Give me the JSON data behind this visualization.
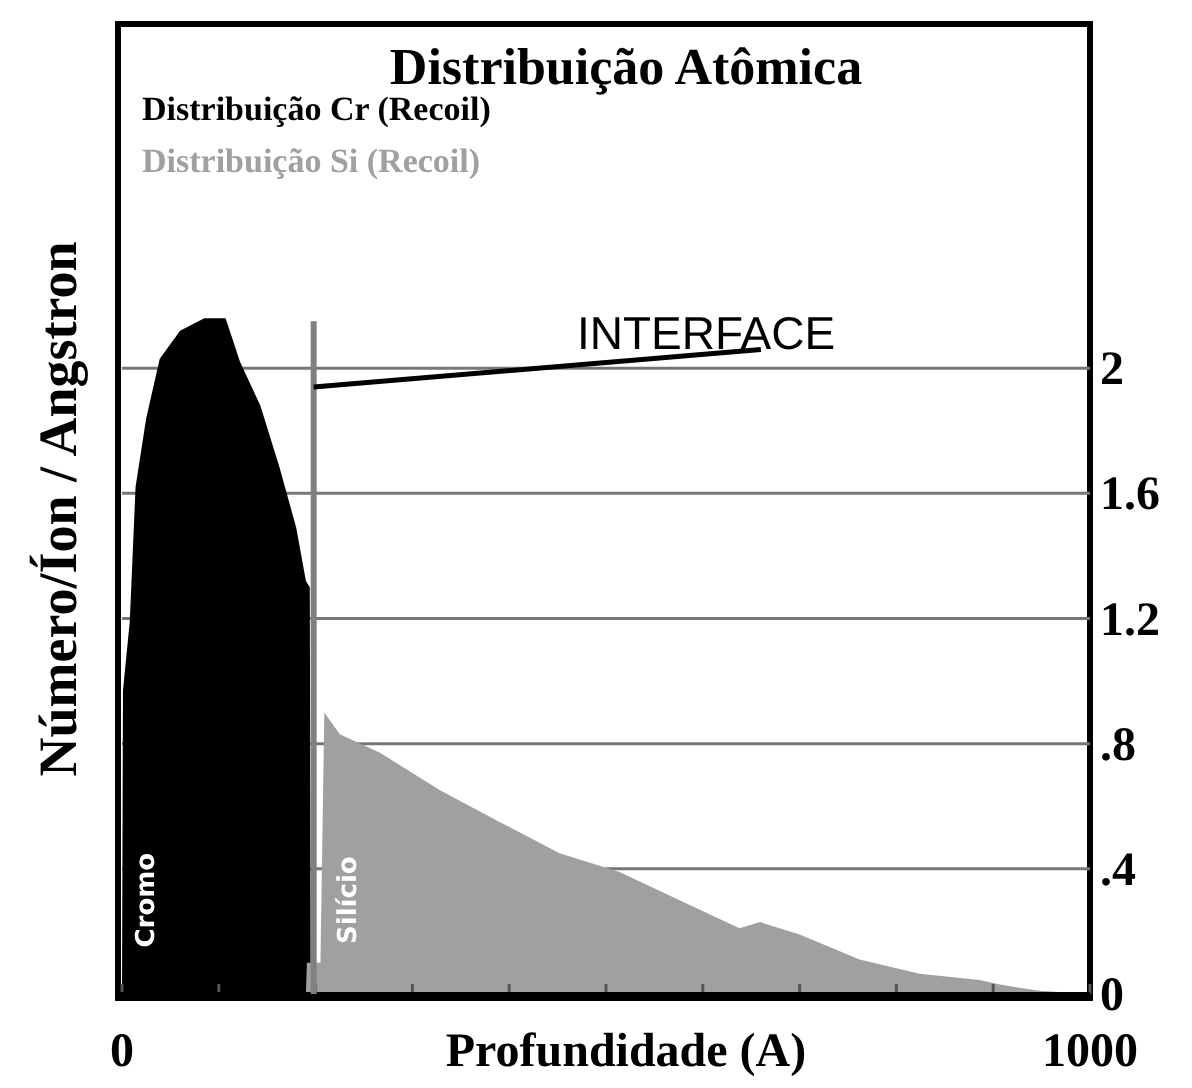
{
  "chart_data": {
    "type": "area",
    "title": "Distribuição Atômica",
    "xlabel": "Profundidade (A)",
    "ylabel": "Número/Íon / Angstron",
    "xlim": [
      0,
      1000
    ],
    "xticks": [
      0,
      {
        "value": 100,
        "label": null
      },
      {
        "value": 200,
        "label": null
      },
      {
        "value": 300,
        "label": null
      },
      {
        "value": 400,
        "label": null
      },
      {
        "value": 500,
        "label": null
      },
      {
        "value": 600,
        "label": null
      },
      {
        "value": 700,
        "label": null
      },
      {
        "value": 800,
        "label": null
      },
      {
        "value": 900,
        "label": null
      },
      1000
    ],
    "ylim": [
      0,
      3.1
    ],
    "yticks": [
      0,
      {
        "value": 0.4,
        "label": ".4"
      },
      {
        "value": 0.8,
        "label": ".8"
      },
      1.2,
      1.6,
      2.0
    ],
    "grid": "y",
    "legend": "top left",
    "series": [
      {
        "name": "Distribuição Cr (Recoil)",
        "color": "#000000",
        "x": [
          0,
          1,
          8,
          14,
          25,
          39,
          60,
          85,
          107,
          122,
          143,
          163,
          180,
          190,
          194,
          195
        ],
        "values": [
          0,
          0.97,
          1.19,
          1.62,
          1.84,
          2.03,
          2.12,
          2.16,
          2.16,
          2.02,
          1.88,
          1.68,
          1.49,
          1.32,
          1.3,
          0
        ]
      },
      {
        "name": "Distribuição Si (Recoil)",
        "color": "#a0a0a0",
        "x": [
          190,
          191,
          205,
          209,
          225,
          267,
          329,
          390,
          452,
          514,
          576,
          638,
          659,
          700,
          762,
          824,
          886,
          907,
          948,
          1000
        ],
        "values": [
          0,
          0.1,
          0.1,
          0.9,
          0.83,
          0.77,
          0.65,
          0.55,
          0.45,
          0.39,
          0.3,
          0.21,
          0.23,
          0.19,
          0.11,
          0.065,
          0.045,
          0.03,
          0.01,
          0
        ]
      }
    ],
    "ref_lines": [
      {
        "axis": "x",
        "value": 198,
        "label": "INTERFACE",
        "color": "#808080"
      }
    ],
    "annotations": [
      "Cromo",
      "Silício"
    ]
  }
}
